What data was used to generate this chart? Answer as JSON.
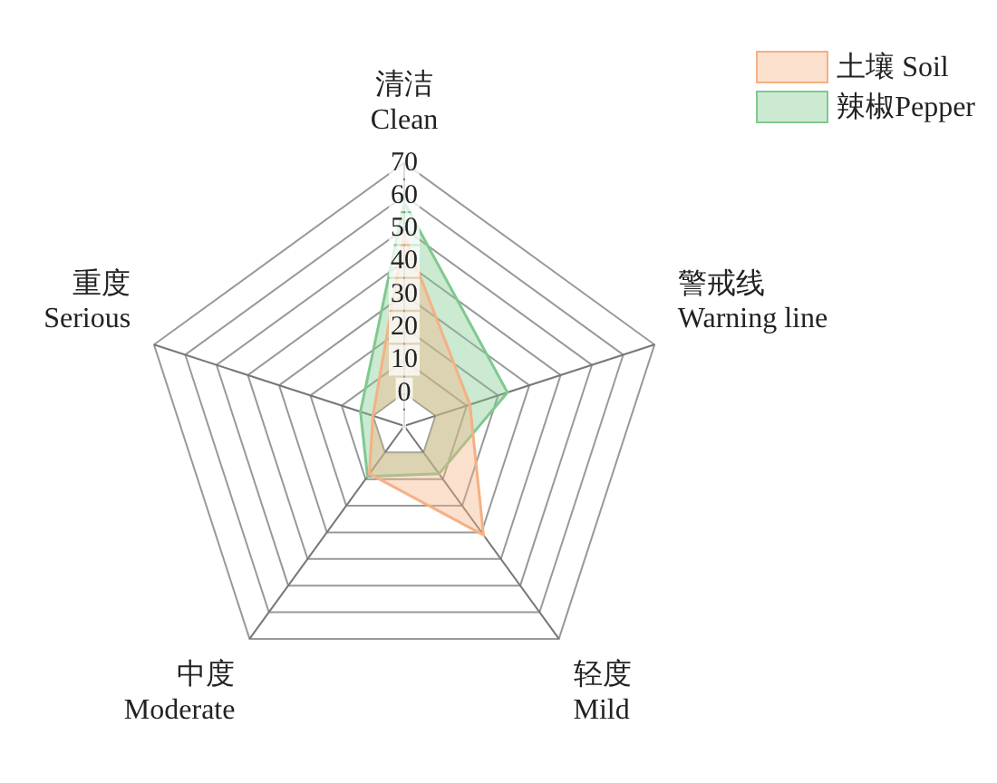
{
  "chart_data": {
    "type": "radar",
    "categories": [
      "清洁\nClean",
      "警戒线\nWarning line",
      "轻度\nMild",
      "中度\nModerate",
      "重度\nSerious"
    ],
    "series": [
      {
        "name": "土壤 Soil",
        "color": "#f4b183",
        "values": [
          48,
          11,
          31,
          8,
          0
        ]
      },
      {
        "name": "辣椒Pepper",
        "color": "#7fc98f",
        "values": [
          58,
          23,
          8,
          9,
          4
        ]
      }
    ],
    "ylim": [
      -10,
      70
    ],
    "yticks": [
      0,
      10,
      20,
      30,
      40,
      50,
      60,
      70
    ],
    "legend": "top right",
    "grid": true
  }
}
